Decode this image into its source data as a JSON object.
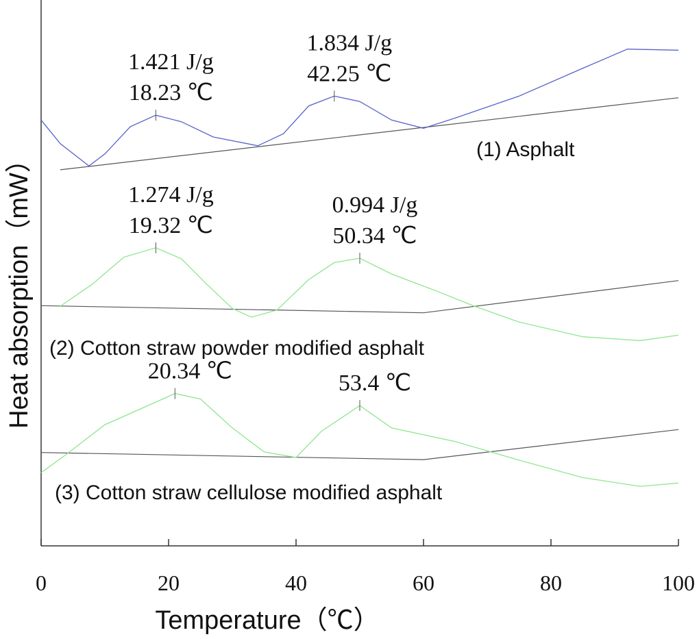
{
  "chart_data": {
    "type": "line",
    "xlabel": "Temperature（℃）",
    "ylabel": "Heat absorption（mW）",
    "xlim": [
      0,
      100
    ],
    "xticks": [
      0,
      20,
      40,
      60,
      80,
      100
    ],
    "ylim": [
      0,
      100
    ],
    "series": [
      {
        "name": "(1) Asphalt",
        "color": "#5563c8",
        "x": [
          0,
          3,
          7.5,
          10,
          14,
          18,
          22,
          27,
          34,
          38,
          42,
          46,
          50,
          55,
          60,
          65,
          75,
          85,
          92,
          100
        ],
        "values": [
          78.0,
          73.7,
          69.6,
          71.8,
          76.8,
          78.9,
          77.7,
          74.9,
          73.3,
          75.5,
          80.6,
          82.4,
          81.4,
          78.0,
          76.5,
          78.4,
          82.4,
          87.5,
          91.0,
          90.8
        ],
        "baseline": {
          "x": [
            3,
            100
          ],
          "values": [
            68.9,
            82.1
          ]
        }
      },
      {
        "name": "(2) Cotton straw powder modified asphalt",
        "color": "#8ee68e",
        "x": [
          3,
          8,
          13,
          18,
          22,
          26,
          30,
          33,
          37,
          42,
          46,
          50,
          55,
          62,
          68,
          75,
          85,
          94,
          100
        ],
        "values": [
          43.9,
          47.9,
          52.9,
          54.6,
          52.6,
          47.9,
          43.5,
          41.9,
          43.2,
          48.8,
          51.9,
          52.7,
          49.8,
          46.7,
          43.9,
          41.0,
          38.3,
          37.6,
          38.6
        ],
        "baseline": {
          "x": [
            0,
            60,
            100
          ],
          "values": [
            44.0,
            42.7,
            48.6
          ]
        }
      },
      {
        "name": "(3) Cotton straw cellulose modified asphalt",
        "color": "#8ee68e",
        "x": [
          0,
          4,
          10,
          16,
          21,
          25,
          30,
          35,
          40,
          44,
          50,
          55,
          65,
          75,
          85,
          94,
          100
        ],
        "values": [
          13.4,
          16.8,
          22.2,
          25.3,
          27.9,
          26.9,
          21.6,
          17.2,
          16.2,
          21.0,
          25.7,
          21.6,
          19.1,
          15.7,
          12.5,
          10.9,
          11.5
        ],
        "baseline": {
          "x": [
            0,
            60,
            100
          ],
          "values": [
            17.1,
            15.8,
            21.3
          ]
        }
      }
    ],
    "annotations": [
      {
        "x": 18,
        "y": 78.9,
        "lines": [
          "1.421 J/g",
          "18.23 ℃"
        ]
      },
      {
        "x": 46,
        "y": 82.4,
        "lines": [
          "1.834 J/g",
          "42.25 ℃"
        ]
      },
      {
        "x": 18,
        "y": 54.6,
        "lines": [
          "1.274 J/g",
          "19.32 ℃"
        ]
      },
      {
        "x": 50,
        "y": 52.7,
        "lines": [
          "0.994 J/g",
          "50.34 ℃"
        ]
      },
      {
        "x": 21,
        "y": 27.9,
        "lines": [
          "20.34 ℃"
        ]
      },
      {
        "x": 50,
        "y": 25.7,
        "lines": [
          "53.4 ℃"
        ]
      }
    ]
  }
}
